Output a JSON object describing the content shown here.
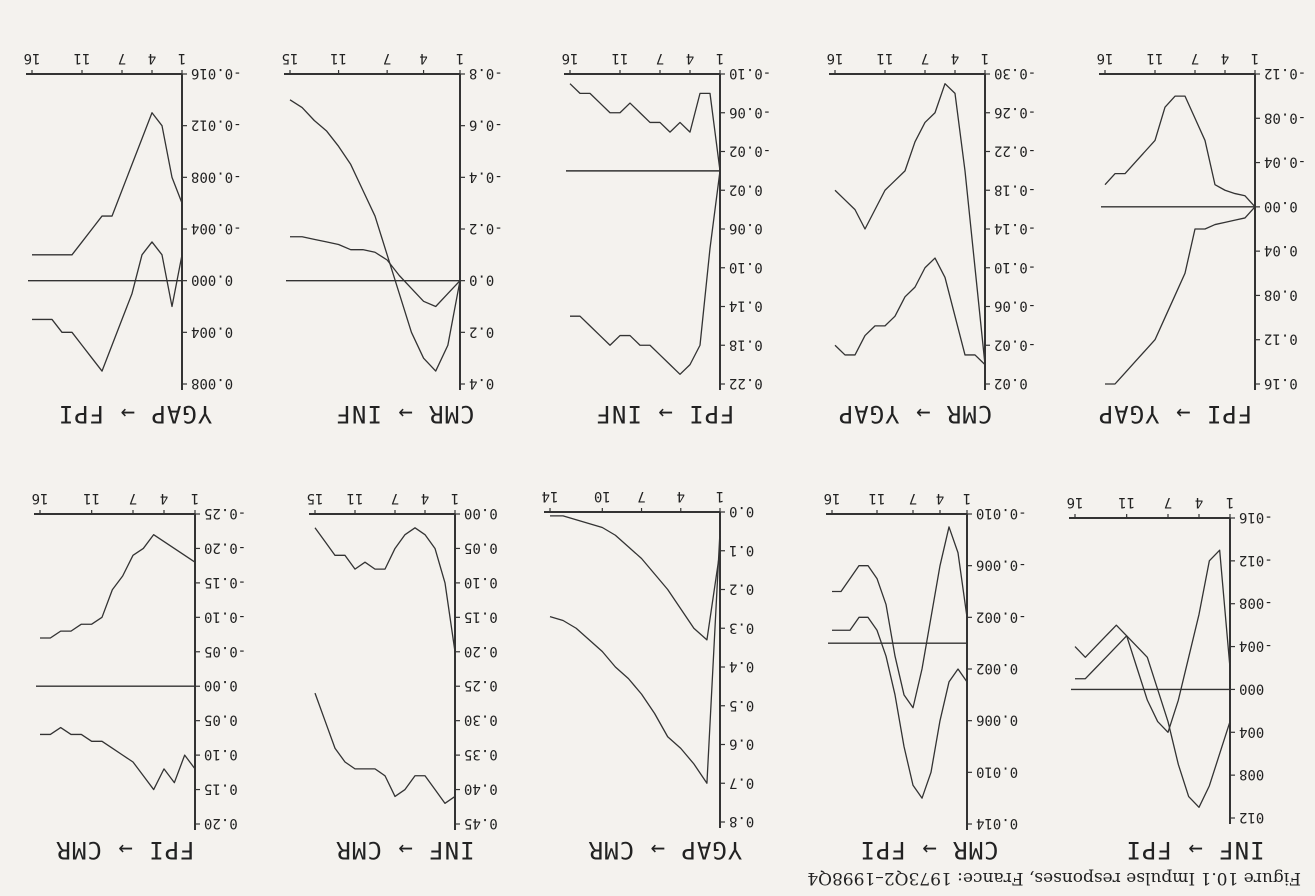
{
  "figure": {
    "caption": "Figure 10.1  Impulse responses, France: 1973Q2–1998Q4",
    "background": "#f4f2ee",
    "line_color": "#333333"
  },
  "chart_data": [
    {
      "type": "line",
      "title": "INF → FPI",
      "x": [
        1,
        2,
        3,
        4,
        5,
        6,
        7,
        8,
        9,
        10,
        11,
        12,
        13,
        14,
        15,
        16
      ],
      "xticks": [
        1,
        4,
        7,
        11,
        16
      ],
      "ylim": [
        -0.016,
        0.012
      ],
      "yticks": [
        -0.016,
        -0.012,
        -0.008,
        -0.004,
        0.0,
        0.004,
        0.008,
        0.012
      ],
      "ytick_labels": [
        "-016",
        "-012",
        "-008",
        "-004",
        "000",
        "004",
        "008",
        "012"
      ],
      "zero_line": true,
      "series": [
        {
          "values": [
            -0.002,
            -0.013,
            -0.012,
            -0.007,
            -0.003,
            0.001,
            0.004,
            0.003,
            0.001,
            -0.002,
            -0.005,
            -0.006,
            -0.005,
            -0.004,
            -0.003,
            -0.004
          ]
        },
        {
          "values": [
            0.003,
            0.006,
            0.009,
            0.011,
            0.01,
            0.007,
            0.003,
            0.0,
            -0.003,
            -0.004,
            -0.005,
            -0.004,
            -0.003,
            -0.002,
            -0.001,
            -0.001
          ]
        }
      ]
    },
    {
      "type": "line",
      "title": "CMR → FPI",
      "x": [
        1,
        2,
        3,
        4,
        5,
        6,
        7,
        8,
        9,
        10,
        11,
        12,
        13,
        14,
        15,
        16
      ],
      "xticks": [
        1,
        4,
        7,
        11,
        16
      ],
      "ylim": [
        -0.01,
        0.014
      ],
      "yticks": [
        -0.01,
        -0.006,
        -0.002,
        0.002,
        0.006,
        0.01,
        0.014
      ],
      "ytick_labels": [
        "-0.010",
        "-0.006",
        "-0.002",
        "0.002",
        "0.006",
        "0.010",
        "0.014"
      ],
      "zero_line": true,
      "series": [
        {
          "values": [
            -0.002,
            -0.007,
            -0.009,
            -0.006,
            -0.002,
            0.002,
            0.005,
            0.004,
            0.001,
            -0.003,
            -0.005,
            -0.006,
            -0.006,
            -0.005,
            -0.004,
            -0.004
          ]
        },
        {
          "values": [
            0.003,
            0.002,
            0.003,
            0.006,
            0.01,
            0.012,
            0.011,
            0.008,
            0.004,
            0.001,
            -0.001,
            -0.002,
            -0.002,
            -0.001,
            -0.001,
            -0.001
          ]
        }
      ]
    },
    {
      "type": "line",
      "title": "YGAP → CMR",
      "x": [
        1,
        2,
        3,
        4,
        5,
        6,
        7,
        8,
        9,
        10,
        11,
        12,
        13,
        14
      ],
      "xticks": [
        1,
        4,
        7,
        10,
        14
      ],
      "ylim": [
        0.0,
        0.8
      ],
      "yticks": [
        0.0,
        0.1,
        0.2,
        0.3,
        0.4,
        0.5,
        0.6,
        0.7,
        0.8
      ],
      "ytick_labels": [
        "0.0",
        "0.1",
        "0.2",
        "0.3",
        "0.4",
        "0.5",
        "0.6",
        "0.7",
        "0.8"
      ],
      "zero_line": false,
      "series": [
        {
          "values": [
            0.1,
            0.33,
            0.3,
            0.25,
            0.2,
            0.16,
            0.12,
            0.09,
            0.06,
            0.04,
            0.03,
            0.02,
            0.01,
            0.01
          ]
        },
        {
          "values": [
            0.05,
            0.7,
            0.65,
            0.61,
            0.58,
            0.52,
            0.47,
            0.43,
            0.4,
            0.36,
            0.33,
            0.3,
            0.28,
            0.27
          ]
        }
      ]
    },
    {
      "type": "line",
      "title": "INF → CMR",
      "x": [
        1,
        2,
        3,
        4,
        5,
        6,
        7,
        8,
        9,
        10,
        11,
        12,
        13,
        14,
        15
      ],
      "xticks": [
        1,
        4,
        7,
        11,
        15
      ],
      "ylim": [
        0.0,
        0.45
      ],
      "yticks": [
        0.0,
        0.05,
        0.1,
        0.15,
        0.2,
        0.25,
        0.3,
        0.35,
        0.4,
        0.45
      ],
      "ytick_labels": [
        "0.00",
        "0.05",
        "0.10",
        "0.15",
        "0.20",
        "0.25",
        "0.30",
        "0.35",
        "0.40",
        "0.45"
      ],
      "zero_line": false,
      "series": [
        {
          "values": [
            0.2,
            0.1,
            0.05,
            0.03,
            0.02,
            0.03,
            0.05,
            0.08,
            0.08,
            0.07,
            0.08,
            0.06,
            0.06,
            0.04,
            0.02
          ]
        },
        {
          "values": [
            0.41,
            0.42,
            0.4,
            0.38,
            0.38,
            0.4,
            0.41,
            0.38,
            0.37,
            0.37,
            0.37,
            0.36,
            0.34,
            0.3,
            0.26
          ]
        }
      ]
    },
    {
      "type": "line",
      "title": "FPI → CMR",
      "x": [
        1,
        2,
        3,
        4,
        5,
        6,
        7,
        8,
        9,
        10,
        11,
        12,
        13,
        14,
        15,
        16
      ],
      "xticks": [
        1,
        4,
        7,
        11,
        16
      ],
      "ylim": [
        -0.25,
        0.2
      ],
      "yticks": [
        -0.25,
        -0.2,
        -0.15,
        -0.1,
        -0.05,
        0.0,
        0.05,
        0.1,
        0.15,
        0.2
      ],
      "ytick_labels": [
        "-0.25",
        "-0.20",
        "-0.15",
        "-0.10",
        "-0.05",
        "0.00",
        "0.05",
        "0.10",
        "0.15",
        "0.20"
      ],
      "zero_line": true,
      "series": [
        {
          "values": [
            -0.18,
            -0.19,
            -0.2,
            -0.21,
            -0.22,
            -0.2,
            -0.19,
            -0.16,
            -0.14,
            -0.1,
            -0.09,
            -0.09,
            -0.08,
            -0.08,
            -0.07,
            -0.07
          ]
        },
        {
          "values": [
            0.12,
            0.1,
            0.14,
            0.12,
            0.15,
            0.13,
            0.11,
            0.1,
            0.09,
            0.08,
            0.08,
            0.07,
            0.07,
            0.06,
            0.07,
            0.07
          ]
        }
      ]
    },
    {
      "type": "line",
      "title": "FPI → YGAP",
      "x": [
        1,
        2,
        3,
        4,
        5,
        6,
        7,
        8,
        9,
        10,
        11,
        12,
        13,
        14,
        15,
        16
      ],
      "xticks": [
        1,
        4,
        7,
        11,
        16
      ],
      "ylim": [
        -0.12,
        0.16
      ],
      "yticks": [
        -0.12,
        -0.08,
        -0.04,
        0.0,
        0.04,
        0.08,
        0.12,
        0.16
      ],
      "ytick_labels": [
        "-0.12",
        "-0.08",
        "-0.04",
        "0.00",
        "0.04",
        "0.08",
        "0.12",
        "0.16"
      ],
      "zero_line": true,
      "series": [
        {
          "values": [
            0.0,
            0.01,
            0.012,
            0.014,
            0.016,
            0.02,
            0.02,
            0.06,
            0.08,
            0.1,
            0.12,
            0.13,
            0.14,
            0.15,
            0.16,
            0.16
          ]
        },
        {
          "values": [
            0.0,
            -0.01,
            -0.012,
            -0.015,
            -0.02,
            -0.06,
            -0.08,
            -0.1,
            -0.1,
            -0.09,
            -0.06,
            -0.05,
            -0.04,
            -0.03,
            -0.03,
            -0.02
          ]
        }
      ]
    },
    {
      "type": "line",
      "title": "CMR → YGAP",
      "x": [
        1,
        2,
        3,
        4,
        5,
        6,
        7,
        8,
        9,
        10,
        11,
        12,
        13,
        14,
        15,
        16
      ],
      "xticks": [
        1,
        4,
        7,
        11,
        16
      ],
      "ylim": [
        -0.3,
        0.02
      ],
      "yticks": [
        -0.3,
        -0.26,
        -0.22,
        -0.18,
        -0.14,
        -0.1,
        -0.06,
        -0.02,
        0.02
      ],
      "ytick_labels": [
        "-0.30",
        "-0.26",
        "-0.22",
        "-0.18",
        "-0.14",
        "-0.10",
        "-0.06",
        "-0.02",
        "0.02"
      ],
      "zero_line": false,
      "series": [
        {
          "values": [
            0.0,
            -0.01,
            -0.01,
            -0.05,
            -0.09,
            -0.11,
            -0.1,
            -0.08,
            -0.07,
            -0.05,
            -0.04,
            -0.04,
            -0.03,
            -0.01,
            -0.01,
            -0.02
          ]
        },
        {
          "values": [
            0.0,
            -0.1,
            -0.2,
            -0.28,
            -0.29,
            -0.26,
            -0.25,
            -0.23,
            -0.2,
            -0.19,
            -0.18,
            -0.16,
            -0.14,
            -0.16,
            -0.17,
            -0.18
          ]
        }
      ]
    },
    {
      "type": "line",
      "title": "FPI → INF",
      "x": [
        1,
        2,
        3,
        4,
        5,
        6,
        7,
        8,
        9,
        10,
        11,
        12,
        13,
        14,
        15,
        16
      ],
      "xticks": [
        1,
        4,
        7,
        11,
        16
      ],
      "ylim": [
        -0.1,
        0.22
      ],
      "yticks": [
        -0.1,
        -0.06,
        -0.02,
        0.02,
        0.06,
        0.1,
        0.14,
        0.18,
        0.22
      ],
      "ytick_labels": [
        "-0.10",
        "-0.06",
        "-0.02",
        "0.02",
        "0.06",
        "0.10",
        "0.14",
        "0.18",
        "0.22"
      ],
      "zero_line": true,
      "series": [
        {
          "values": [
            0.0,
            -0.08,
            -0.08,
            -0.04,
            -0.05,
            -0.04,
            -0.05,
            -0.05,
            -0.06,
            -0.07,
            -0.06,
            -0.06,
            -0.07,
            -0.08,
            -0.08,
            -0.09
          ]
        },
        {
          "values": [
            0.0,
            0.08,
            0.18,
            0.2,
            0.21,
            0.2,
            0.19,
            0.18,
            0.18,
            0.17,
            0.17,
            0.18,
            0.17,
            0.16,
            0.15,
            0.15
          ]
        }
      ]
    },
    {
      "type": "line",
      "title": "CMR → INF",
      "x": [
        1,
        2,
        3,
        4,
        5,
        6,
        7,
        8,
        9,
        10,
        11,
        12,
        13,
        14,
        15
      ],
      "xticks": [
        1,
        4,
        7,
        11,
        15
      ],
      "ylim": [
        -0.8,
        0.4
      ],
      "yticks": [
        -0.8,
        -0.6,
        -0.4,
        -0.2,
        0.0,
        0.2,
        0.4
      ],
      "ytick_labels": [
        "-0.8",
        "-0.6",
        "-0.4",
        "-0.2",
        "0.0",
        "0.2",
        "0.4"
      ],
      "zero_line": true,
      "series": [
        {
          "values": [
            0.0,
            0.05,
            0.1,
            0.08,
            0.03,
            -0.02,
            -0.08,
            -0.11,
            -0.12,
            -0.12,
            -0.14,
            -0.15,
            -0.16,
            -0.17,
            -0.17
          ]
        },
        {
          "values": [
            0.0,
            0.25,
            0.35,
            0.3,
            0.2,
            0.05,
            -0.1,
            -0.25,
            -0.35,
            -0.45,
            -0.52,
            -0.58,
            -0.62,
            -0.67,
            -0.7
          ]
        }
      ]
    },
    {
      "type": "line",
      "title": "YGAP → FPI",
      "x": [
        1,
        2,
        3,
        4,
        5,
        6,
        7,
        8,
        9,
        10,
        11,
        12,
        13,
        14,
        15,
        16
      ],
      "xticks": [
        1,
        4,
        7,
        11,
        16
      ],
      "ylim": [
        -0.016,
        0.008
      ],
      "yticks": [
        -0.016,
        -0.012,
        -0.008,
        -0.004,
        0.0,
        0.004,
        0.008
      ],
      "ytick_labels": [
        "-0.016",
        "-0.012",
        "-0.008",
        "-0.004",
        "0.000",
        "0.004",
        "0.008"
      ],
      "zero_line": true,
      "series": [
        {
          "values": [
            -0.002,
            0.002,
            -0.002,
            -0.003,
            -0.002,
            0.001,
            0.003,
            0.005,
            0.007,
            0.006,
            0.005,
            0.004,
            0.004,
            0.003,
            0.003,
            0.003
          ]
        },
        {
          "values": [
            -0.006,
            -0.008,
            -0.012,
            -0.013,
            -0.011,
            -0.009,
            -0.007,
            -0.005,
            -0.005,
            -0.004,
            -0.003,
            -0.002,
            -0.002,
            -0.002,
            -0.002,
            -0.002
          ]
        }
      ]
    }
  ]
}
